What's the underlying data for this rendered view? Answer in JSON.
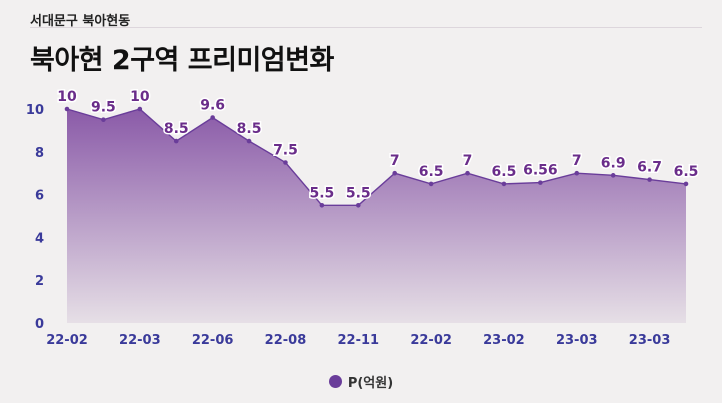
{
  "header": {
    "subtitle": "서대문구 북아현동",
    "title": "북아현 2구역 프리미엄변화"
  },
  "chart_data": {
    "type": "area",
    "series_name": "P(억원)",
    "y_ticks": [
      "0",
      "2",
      "4",
      "6",
      "8",
      "10"
    ],
    "ylim": [
      0,
      10
    ],
    "x_labels": [
      "22-02",
      "22-03",
      "22-06",
      "22-08",
      "22-11",
      "22-02",
      "23-02",
      "23-03",
      "23-03"
    ],
    "values": [
      10,
      9.5,
      10,
      8.5,
      9.6,
      8.5,
      7.5,
      5.5,
      5.5,
      7,
      6.5,
      7,
      6.5,
      6.56,
      7,
      6.9,
      6.7,
      6.5
    ],
    "value_labels": [
      "10",
      "9.5",
      "10",
      "8.5",
      "9.6",
      "8.5",
      "7.5",
      "5.5",
      "5.5",
      "7",
      "6.5",
      "7",
      "6.5",
      "6.56",
      "7",
      "6.9",
      "6.7",
      "6.5"
    ],
    "colors": {
      "line": "#6a3d9a",
      "fill_top": "#8a5aa8",
      "fill_bottom": "#e6dfe6",
      "axis_text": "#3a3a9a",
      "label_text": "#6a2d8a"
    },
    "grid": false,
    "legend": "bottom-center"
  }
}
